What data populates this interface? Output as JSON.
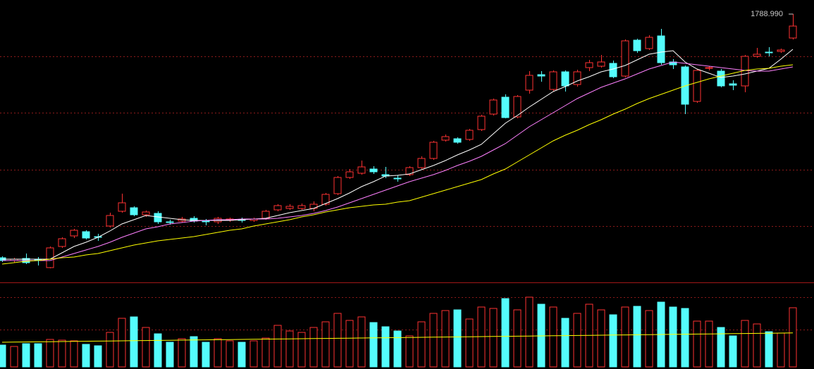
{
  "chart_data": {
    "type": "candlestick",
    "up_color": "#ff3232",
    "down_color": "#54fcfc",
    "ylim": [
      1029,
      1829
    ],
    "volume_ylim": [
      0,
      11900
    ],
    "open": [
      1097,
      1089,
      1095,
      1091,
      1069,
      1129,
      1159,
      1171,
      1157,
      1187,
      1229,
      1239,
      1219,
      1223,
      1199,
      1201,
      1209,
      1201,
      1199,
      1203,
      1205,
      1203,
      1209,
      1233,
      1237,
      1237,
      1237,
      1249,
      1279,
      1325,
      1337,
      1349,
      1333,
      1323,
      1333,
      1353,
      1379,
      1431,
      1435,
      1433,
      1461,
      1505,
      1553,
      1497,
      1573,
      1617,
      1575,
      1625,
      1589,
      1637,
      1641,
      1649,
      1613,
      1715,
      1691,
      1727,
      1653,
      1639,
      1541,
      1635,
      1627,
      1591,
      1585,
      1669,
      1681,
      1683,
      1721
    ],
    "high": [
      1101,
      1097,
      1109,
      1099,
      1129,
      1155,
      1179,
      1175,
      1165,
      1225,
      1279,
      1243,
      1231,
      1229,
      1205,
      1213,
      1215,
      1207,
      1213,
      1211,
      1211,
      1211,
      1233,
      1249,
      1249,
      1251,
      1257,
      1281,
      1329,
      1349,
      1373,
      1357,
      1355,
      1331,
      1357,
      1385,
      1429,
      1447,
      1439,
      1463,
      1503,
      1549,
      1561,
      1559,
      1627,
      1627,
      1629,
      1629,
      1631,
      1659,
      1673,
      1657,
      1717,
      1719,
      1729,
      1747,
      1661,
      1643,
      1633,
      1641,
      1633,
      1601,
      1673,
      1693,
      1695,
      1691,
      1788.99
    ],
    "low": [
      1085,
      1083,
      1079,
      1075,
      1067,
      1125,
      1153,
      1149,
      1145,
      1183,
      1225,
      1215,
      1213,
      1193,
      1191,
      1197,
      1197,
      1189,
      1193,
      1199,
      1197,
      1199,
      1205,
      1229,
      1233,
      1233,
      1229,
      1245,
      1275,
      1321,
      1333,
      1335,
      1323,
      1313,
      1329,
      1349,
      1375,
      1427,
      1421,
      1429,
      1457,
      1501,
      1493,
      1493,
      1563,
      1597,
      1569,
      1569,
      1583,
      1627,
      1637,
      1607,
      1609,
      1679,
      1687,
      1645,
      1633,
      1505,
      1537,
      1629,
      1581,
      1573,
      1567,
      1665,
      1669,
      1679,
      1717
    ],
    "close": [
      1089,
      1093,
      1083,
      1089,
      1125,
      1151,
      1175,
      1153,
      1155,
      1217,
      1253,
      1219,
      1227,
      1199,
      1197,
      1207,
      1201,
      1199,
      1209,
      1207,
      1203,
      1207,
      1229,
      1245,
      1243,
      1245,
      1249,
      1277,
      1325,
      1341,
      1355,
      1341,
      1329,
      1321,
      1353,
      1379,
      1425,
      1441,
      1425,
      1459,
      1499,
      1545,
      1495,
      1555,
      1615,
      1613,
      1625,
      1585,
      1625,
      1651,
      1653,
      1611,
      1713,
      1685,
      1723,
      1651,
      1645,
      1533,
      1629,
      1637,
      1585,
      1587,
      1669,
      1675,
      1679,
      1687,
      1755
    ],
    "high_label": {
      "value": 1788.99,
      "label": "1788.990"
    },
    "series": [
      {
        "color": "#ffffff",
        "values": [
          1093,
          1093,
          1093,
          1093,
          1093,
          1111,
          1129,
          1141,
          1155,
          1173,
          1193,
          1205,
          1217,
          1213,
          1209,
          1205,
          1203,
          1203,
          1203,
          1203,
          1205,
          1207,
          1209,
          1217,
          1225,
          1231,
          1237,
          1251,
          1265,
          1281,
          1299,
          1313,
          1329,
          1331,
          1335,
          1347,
          1359,
          1373,
          1389,
          1403,
          1419,
          1449,
          1479,
          1501,
          1525,
          1547,
          1569,
          1583,
          1599,
          1611,
          1625,
          1633,
          1643,
          1659,
          1675,
          1681,
          1685,
          1653,
          1633,
          1621,
          1609,
          1613,
          1619,
          1627,
          1635,
          1661,
          1689
        ]
      },
      {
        "color": "#ff80ff",
        "values": [
          1089,
          1089,
          1089,
          1089,
          1089,
          1099,
          1109,
          1119,
          1129,
          1141,
          1155,
          1167,
          1179,
          1185,
          1193,
          1197,
          1201,
          1203,
          1205,
          1205,
          1207,
          1207,
          1207,
          1209,
          1213,
          1217,
          1223,
          1231,
          1241,
          1253,
          1265,
          1277,
          1289,
          1301,
          1313,
          1323,
          1333,
          1345,
          1359,
          1371,
          1385,
          1403,
          1421,
          1445,
          1469,
          1489,
          1509,
          1529,
          1549,
          1565,
          1581,
          1593,
          1605,
          1619,
          1633,
          1643,
          1653,
          1649,
          1645,
          1641,
          1637,
          1633,
          1629,
          1627,
          1627,
          1633,
          1639
        ]
      },
      {
        "color": "#ffff00",
        "values": [
          1079,
          1083,
          1087,
          1089,
          1093,
          1097,
          1099,
          1105,
          1109,
          1117,
          1125,
          1133,
          1139,
          1145,
          1149,
          1153,
          1157,
          1163,
          1169,
          1175,
          1179,
          1187,
          1193,
          1199,
          1205,
          1213,
          1219,
          1227,
          1233,
          1239,
          1243,
          1247,
          1249,
          1255,
          1259,
          1269,
          1279,
          1289,
          1299,
          1309,
          1319,
          1335,
          1349,
          1369,
          1389,
          1409,
          1429,
          1445,
          1459,
          1475,
          1489,
          1505,
          1519,
          1535,
          1549,
          1561,
          1573,
          1585,
          1595,
          1605,
          1613,
          1621,
          1629,
          1633,
          1635,
          1641,
          1645
        ]
      }
    ],
    "volume": [
      3100,
      2900,
      3300,
      3300,
      3900,
      3800,
      3700,
      3200,
      3000,
      4900,
      6900,
      7100,
      5600,
      4700,
      3500,
      4000,
      4300,
      3500,
      4000,
      3700,
      3500,
      3700,
      4100,
      5900,
      5100,
      4900,
      5600,
      6400,
      7600,
      6600,
      7100,
      6300,
      5700,
      5100,
      4400,
      6400,
      7600,
      8000,
      8100,
      6800,
      8500,
      8300,
      9700,
      8100,
      9900,
      8900,
      8500,
      6900,
      7600,
      8900,
      8100,
      7400,
      8500,
      8600,
      8000,
      9200,
      8500,
      8300,
      6500,
      6500,
      5600,
      4400,
      6600,
      6100,
      5000,
      4800,
      8400
    ],
    "volume_ma": {
      "color": "#ffff00",
      "values": [
        3500,
        3520,
        3540,
        3560,
        3580,
        3600,
        3620,
        3640,
        3660,
        3680,
        3700,
        3720,
        3740,
        3760,
        3780,
        3800,
        3820,
        3840,
        3860,
        3880,
        3900,
        3920,
        3940,
        3960,
        3980,
        4000,
        4020,
        4040,
        4060,
        4080,
        4100,
        4120,
        4140,
        4160,
        4180,
        4200,
        4220,
        4240,
        4260,
        4280,
        4300,
        4320,
        4340,
        4360,
        4380,
        4400,
        4420,
        4440,
        4460,
        4480,
        4500,
        4520,
        4540,
        4560,
        4580,
        4600,
        4620,
        4640,
        4660,
        4680,
        4700,
        4720,
        4740,
        4760,
        4780,
        4800,
        4820
      ]
    }
  }
}
